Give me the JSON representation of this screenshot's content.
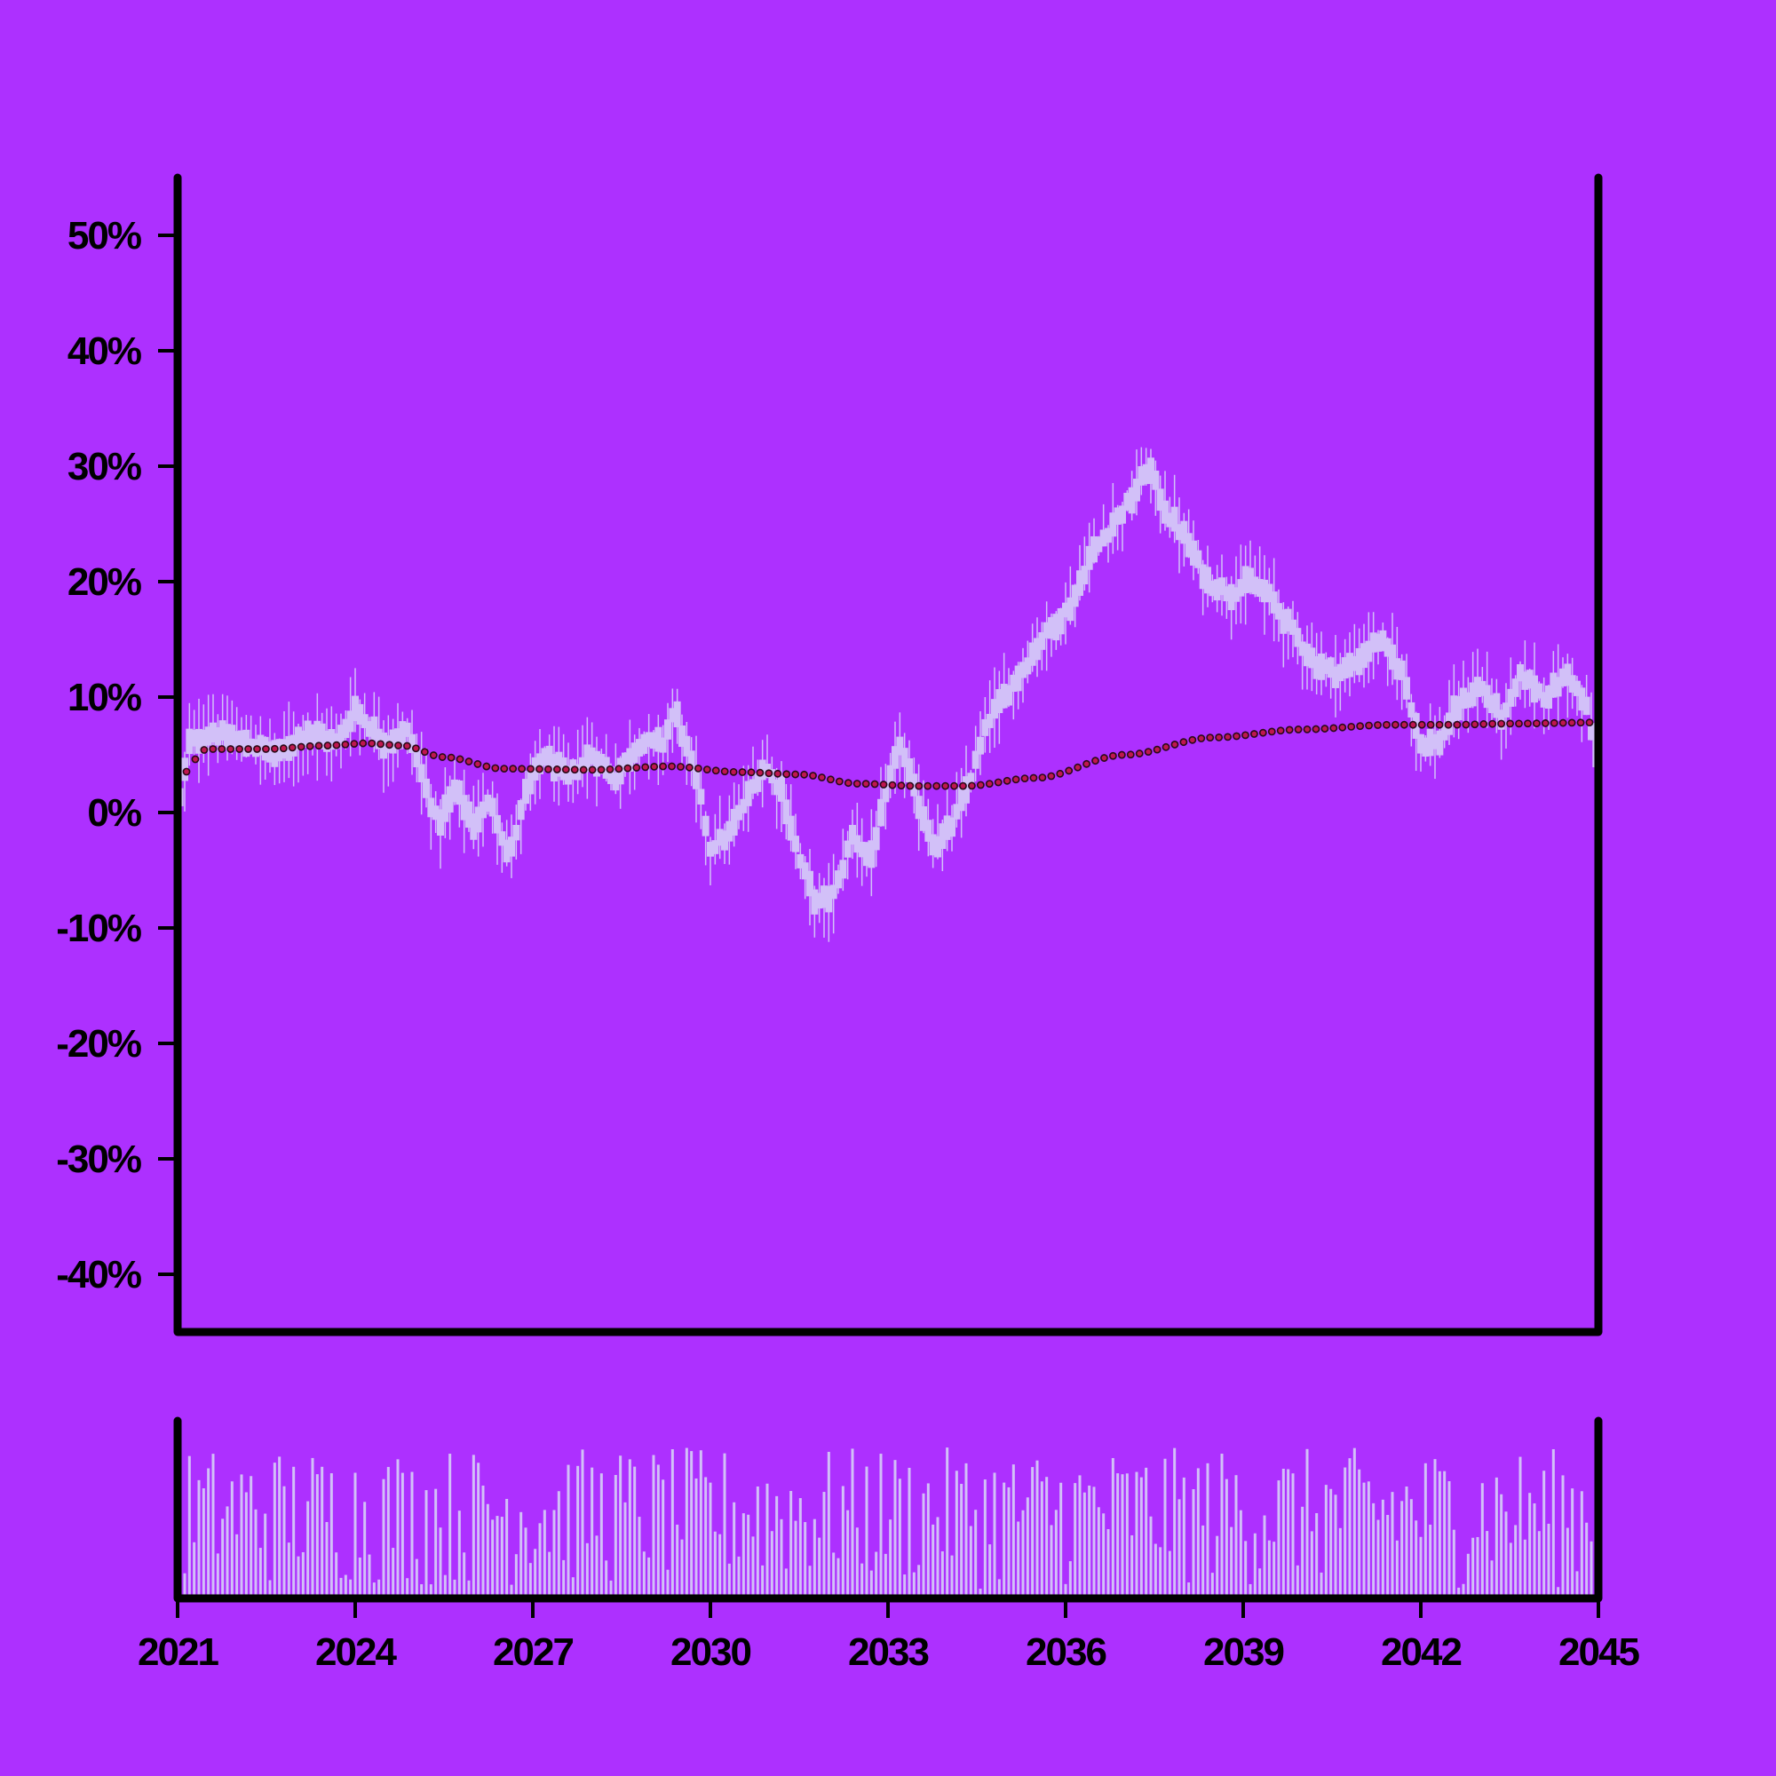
{
  "colors": {
    "background": "#AD30FF",
    "axis": "#000000",
    "candle": "#D2C0F8",
    "volume": "#D2C0F8",
    "trend_fill": "#C0174F",
    "trend_stroke": "#2A0A18"
  },
  "chart_data": {
    "type": "candlestick",
    "title": "",
    "xlabel": "",
    "ylabel": "",
    "x_range": [
      "2021",
      "2045"
    ],
    "ylim": [
      -0.45,
      0.55
    ],
    "y_ticks": [
      {
        "value": 0.5,
        "label": "50%"
      },
      {
        "value": 0.4,
        "label": "40%"
      },
      {
        "value": 0.3,
        "label": "30%"
      },
      {
        "value": 0.2,
        "label": "20%"
      },
      {
        "value": 0.1,
        "label": "10%"
      },
      {
        "value": 0.0,
        "label": "0%"
      },
      {
        "value": -0.1,
        "label": "-10%"
      },
      {
        "value": -0.2,
        "label": "-20%"
      },
      {
        "value": -0.3,
        "label": "-30%"
      },
      {
        "value": -0.4,
        "label": "-40%"
      }
    ],
    "x_ticks": [
      {
        "value": 2021,
        "label": "2021"
      },
      {
        "value": 2024,
        "label": "2024"
      },
      {
        "value": 2027,
        "label": "2027"
      },
      {
        "value": 2030,
        "label": "2030"
      },
      {
        "value": 2033,
        "label": "2033"
      },
      {
        "value": 2036,
        "label": "2036"
      },
      {
        "value": 2039,
        "label": "2039"
      },
      {
        "value": 2042,
        "label": "2042"
      },
      {
        "value": 2045,
        "label": "2045"
      }
    ],
    "price_path": [
      {
        "x": 2021.0,
        "y": 0.0
      },
      {
        "x": 2021.2,
        "y": 0.06
      },
      {
        "x": 2021.6,
        "y": 0.07
      },
      {
        "x": 2022.2,
        "y": 0.06
      },
      {
        "x": 2022.7,
        "y": 0.05
      },
      {
        "x": 2023.2,
        "y": 0.07
      },
      {
        "x": 2023.7,
        "y": 0.06
      },
      {
        "x": 2024.0,
        "y": 0.09
      },
      {
        "x": 2024.5,
        "y": 0.06
      },
      {
        "x": 2024.9,
        "y": 0.07
      },
      {
        "x": 2025.2,
        "y": 0.02
      },
      {
        "x": 2025.4,
        "y": -0.01
      },
      {
        "x": 2025.7,
        "y": 0.02
      },
      {
        "x": 2026.0,
        "y": -0.01
      },
      {
        "x": 2026.3,
        "y": 0.01
      },
      {
        "x": 2026.6,
        "y": -0.04
      },
      {
        "x": 2026.9,
        "y": 0.02
      },
      {
        "x": 2027.2,
        "y": 0.05
      },
      {
        "x": 2027.6,
        "y": 0.03
      },
      {
        "x": 2028.0,
        "y": 0.05
      },
      {
        "x": 2028.4,
        "y": 0.03
      },
      {
        "x": 2028.8,
        "y": 0.06
      },
      {
        "x": 2029.2,
        "y": 0.06
      },
      {
        "x": 2029.4,
        "y": 0.09
      },
      {
        "x": 2029.8,
        "y": 0.02
      },
      {
        "x": 2030.0,
        "y": -0.03
      },
      {
        "x": 2030.3,
        "y": -0.02
      },
      {
        "x": 2030.6,
        "y": 0.01
      },
      {
        "x": 2030.9,
        "y": 0.04
      },
      {
        "x": 2031.2,
        "y": 0.02
      },
      {
        "x": 2031.5,
        "y": -0.04
      },
      {
        "x": 2031.8,
        "y": -0.08
      },
      {
        "x": 2032.1,
        "y": -0.07
      },
      {
        "x": 2032.4,
        "y": -0.02
      },
      {
        "x": 2032.7,
        "y": -0.04
      },
      {
        "x": 2033.0,
        "y": 0.02
      },
      {
        "x": 2033.2,
        "y": 0.06
      },
      {
        "x": 2033.5,
        "y": 0.01
      },
      {
        "x": 2033.8,
        "y": -0.03
      },
      {
        "x": 2034.1,
        "y": -0.01
      },
      {
        "x": 2034.4,
        "y": 0.03
      },
      {
        "x": 2034.7,
        "y": 0.08
      },
      {
        "x": 2035.1,
        "y": 0.11
      },
      {
        "x": 2035.6,
        "y": 0.15
      },
      {
        "x": 2036.1,
        "y": 0.18
      },
      {
        "x": 2036.4,
        "y": 0.22
      },
      {
        "x": 2036.8,
        "y": 0.25
      },
      {
        "x": 2037.1,
        "y": 0.27
      },
      {
        "x": 2037.4,
        "y": 0.3
      },
      {
        "x": 2037.7,
        "y": 0.26
      },
      {
        "x": 2038.0,
        "y": 0.24
      },
      {
        "x": 2038.4,
        "y": 0.2
      },
      {
        "x": 2038.8,
        "y": 0.19
      },
      {
        "x": 2039.1,
        "y": 0.2
      },
      {
        "x": 2039.4,
        "y": 0.19
      },
      {
        "x": 2039.8,
        "y": 0.16
      },
      {
        "x": 2040.2,
        "y": 0.13
      },
      {
        "x": 2040.6,
        "y": 0.12
      },
      {
        "x": 2040.9,
        "y": 0.13
      },
      {
        "x": 2041.3,
        "y": 0.15
      },
      {
        "x": 2041.7,
        "y": 0.12
      },
      {
        "x": 2042.0,
        "y": 0.06
      },
      {
        "x": 2042.3,
        "y": 0.06
      },
      {
        "x": 2042.6,
        "y": 0.09
      },
      {
        "x": 2043.0,
        "y": 0.11
      },
      {
        "x": 2043.4,
        "y": 0.08
      },
      {
        "x": 2043.7,
        "y": 0.12
      },
      {
        "x": 2044.1,
        "y": 0.1
      },
      {
        "x": 2044.5,
        "y": 0.12
      },
      {
        "x": 2044.8,
        "y": 0.09
      },
      {
        "x": 2045.0,
        "y": 0.04
      }
    ],
    "trend": [
      {
        "x": 2021.0,
        "y": 0.03
      },
      {
        "x": 2021.5,
        "y": 0.055
      },
      {
        "x": 2022.5,
        "y": 0.055
      },
      {
        "x": 2023.5,
        "y": 0.058
      },
      {
        "x": 2024.2,
        "y": 0.06
      },
      {
        "x": 2024.8,
        "y": 0.058
      },
      {
        "x": 2025.5,
        "y": 0.048
      },
      {
        "x": 2026.5,
        "y": 0.038
      },
      {
        "x": 2028.0,
        "y": 0.037
      },
      {
        "x": 2029.3,
        "y": 0.04
      },
      {
        "x": 2030.5,
        "y": 0.035
      },
      {
        "x": 2031.5,
        "y": 0.033
      },
      {
        "x": 2032.5,
        "y": 0.025
      },
      {
        "x": 2033.5,
        "y": 0.023
      },
      {
        "x": 2034.3,
        "y": 0.023
      },
      {
        "x": 2035.5,
        "y": 0.03
      },
      {
        "x": 2037.0,
        "y": 0.05
      },
      {
        "x": 2038.5,
        "y": 0.065
      },
      {
        "x": 2040.0,
        "y": 0.072
      },
      {
        "x": 2041.5,
        "y": 0.076
      },
      {
        "x": 2042.5,
        "y": 0.076
      },
      {
        "x": 2043.5,
        "y": 0.077
      },
      {
        "x": 2045.0,
        "y": 0.078
      }
    ]
  }
}
